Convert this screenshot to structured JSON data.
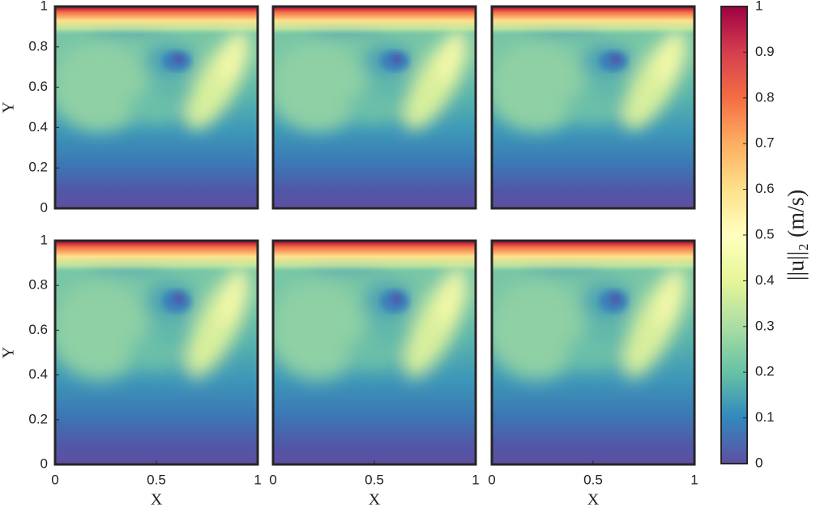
{
  "chart_data": [
    {
      "type": "contour",
      "xlim": [
        0,
        1
      ],
      "ylim": [
        0,
        1
      ],
      "yticks": [
        0,
        0.2,
        0.4,
        0.6,
        0.8,
        1
      ],
      "ylabel": "Y"
    },
    {
      "type": "contour",
      "xlim": [
        0,
        1
      ],
      "ylim": [
        0,
        1
      ]
    },
    {
      "type": "contour",
      "xlim": [
        0,
        1
      ],
      "ylim": [
        0,
        1
      ]
    },
    {
      "type": "contour",
      "xlim": [
        0,
        1
      ],
      "ylim": [
        0,
        1
      ],
      "yticks": [
        0,
        0.2,
        0.4,
        0.6,
        0.8,
        1
      ],
      "ylabel": "Y",
      "xticks": [
        0,
        0.5,
        1
      ],
      "xlabel": "X"
    },
    {
      "type": "contour",
      "xlim": [
        0,
        1
      ],
      "ylim": [
        0,
        1
      ],
      "xticks": [
        0,
        0.5,
        1
      ],
      "xlabel": "X"
    },
    {
      "type": "contour",
      "xlim": [
        0,
        1
      ],
      "ylim": [
        0,
        1
      ],
      "xticks": [
        0,
        0.5,
        1
      ],
      "xlabel": "X"
    },
    {
      "type": "colorbar",
      "label": "||u||₂ (m/s)",
      "lim": [
        0,
        1
      ],
      "ticks": [
        0,
        0.1,
        0.2,
        0.3,
        0.4,
        0.5,
        0.6,
        0.7,
        0.8,
        0.9,
        1
      ],
      "colors": [
        "#5e4fa2",
        "#3288bd",
        "#66c2a5",
        "#abdda4",
        "#e6f598",
        "#ffffbf",
        "#fee08b",
        "#fdae61",
        "#f46d43",
        "#d53e4f",
        "#9e0142"
      ]
    }
  ]
}
